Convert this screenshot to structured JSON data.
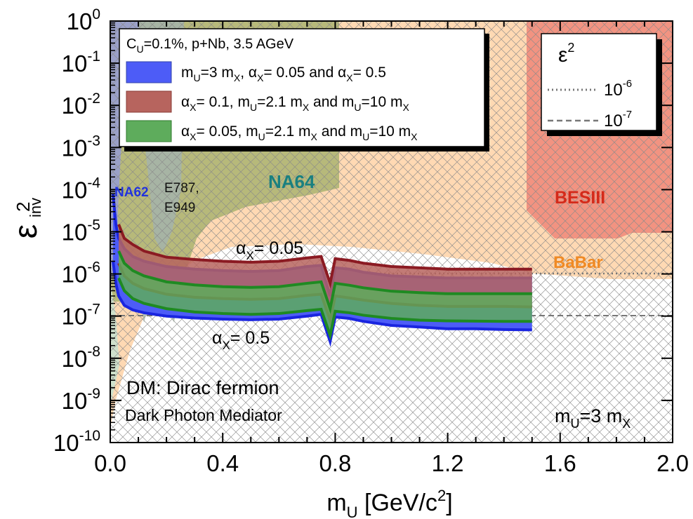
{
  "chart_data": {
    "type": "area",
    "x_axis": {
      "label_main": "m",
      "label_sub": "U",
      "label_rest": " [GeV/c",
      "label_sup": "2",
      "label_end": "]",
      "range": [
        0.0,
        2.0
      ],
      "ticks": [
        "0.0",
        "0.4",
        "0.8",
        "1.2",
        "1.6",
        "2.0"
      ],
      "tick_values": [
        0.0,
        0.4,
        0.8,
        1.2,
        1.6,
        2.0
      ]
    },
    "y_axis": {
      "label_main": "ε",
      "label_sup": "2",
      "label_sub": "inv",
      "scale": "log",
      "range_exponents": [
        -10,
        0
      ],
      "tick_base": "10",
      "tick_exponents": [
        "0",
        "-1",
        "-2",
        "-3",
        "-4",
        "-5",
        "-6",
        "-7",
        "-8",
        "-9",
        "-10"
      ]
    },
    "legend": {
      "title_main": "C",
      "title_sub": "U",
      "title_rest": "=0.1%, p+Nb, 3.5 AGeV",
      "entries": [
        {
          "color": "#4d5cf7",
          "text": "m_U=3 m_X, α_X= 0.05 and  α_X= 0.5"
        },
        {
          "color": "#b7645e",
          "text": "α_X= 0.1, m_U=2.1 m_X and m_U=10 m_X"
        },
        {
          "color": "#5eac5c",
          "text": "α_X= 0.05, m_U=2.1 m_X and m_U=10 m_X"
        }
      ]
    },
    "eps_legend": {
      "title_main": "ε",
      "title_sup": "2",
      "entries": [
        {
          "style": "dotted",
          "base": "10",
          "exp": "-6"
        },
        {
          "style": "dashed",
          "base": "10",
          "exp": "-7"
        }
      ]
    },
    "reference_lines": [
      {
        "y": 1e-06,
        "style": "dotted"
      },
      {
        "y": 1e-07,
        "style": "dashed"
      }
    ],
    "series": [
      {
        "name": "m_U=3 m_X, α_X= 0.05 and α_X= 0.5",
        "color": "#4d5cf7",
        "x": [
          0.01,
          0.02,
          0.03,
          0.05,
          0.08,
          0.12,
          0.2,
          0.3,
          0.4,
          0.5,
          0.6,
          0.7,
          0.75,
          0.782,
          0.8,
          0.85,
          0.9,
          1.0,
          1.1,
          1.2,
          1.3,
          1.4,
          1.5
        ],
        "upper": [
          8e-05,
          1.5e-05,
          7e-06,
          4e-06,
          2.6e-06,
          2e-06,
          1.5e-06,
          1.3e-06,
          1.2e-06,
          1.15e-06,
          1.2e-06,
          1.5e-06,
          1.6e-06,
          3e-07,
          1.4e-06,
          1.3e-06,
          1.1e-06,
          9e-07,
          8.5e-07,
          8e-07,
          8e-07,
          8e-07,
          8e-07
        ],
        "lower": [
          2e-06,
          6e-07,
          3e-07,
          1.8e-07,
          1.4e-07,
          1.2e-07,
          1e-07,
          9e-08,
          8.5e-08,
          8.2e-08,
          8.5e-08,
          1e-07,
          1.1e-07,
          2.5e-08,
          9.5e-08,
          8.8e-08,
          7.5e-08,
          6e-08,
          5.5e-08,
          5e-08,
          5e-08,
          4.8e-08,
          4.7e-08
        ]
      },
      {
        "name": "α_X= 0.1, m_U=2.1 m_X and m_U=10 m_X",
        "color": "#b7645e",
        "x": [
          0.03,
          0.05,
          0.08,
          0.12,
          0.2,
          0.3,
          0.4,
          0.5,
          0.6,
          0.7,
          0.75,
          0.782,
          0.8,
          0.85,
          0.9,
          1.0,
          1.1,
          1.2,
          1.3,
          1.4,
          1.5
        ],
        "upper": [
          1.5e-05,
          7e-06,
          5e-06,
          3.5e-06,
          2.5e-06,
          2.2e-06,
          2e-06,
          1.9e-06,
          2e-06,
          2.4e-06,
          2.6e-06,
          6e-07,
          2.3e-06,
          2.1e-06,
          1.8e-06,
          1.5e-06,
          1.4e-06,
          1.3e-06,
          1.3e-06,
          1.3e-06,
          1.3e-06
        ],
        "lower": [
          1.8e-06,
          9e-07,
          6e-07,
          4.5e-07,
          3.3e-07,
          2.8e-07,
          2.6e-07,
          2.5e-07,
          2.6e-07,
          3.1e-07,
          3.3e-07,
          8e-08,
          3e-07,
          2.7e-07,
          2.4e-07,
          2e-07,
          1.8e-07,
          1.7e-07,
          1.7e-07,
          1.7e-07,
          1.65e-07
        ]
      },
      {
        "name": "α_X= 0.05, m_U=2.1 m_X and m_U=10 m_X",
        "color": "#5eac5c",
        "x": [
          0.03,
          0.05,
          0.08,
          0.12,
          0.2,
          0.3,
          0.4,
          0.5,
          0.6,
          0.7,
          0.75,
          0.782,
          0.8,
          0.85,
          0.9,
          1.0,
          1.1,
          1.2,
          1.3,
          1.4,
          1.5
        ],
        "upper": [
          3.5e-06,
          1.8e-06,
          1.2e-06,
          9e-07,
          6.5e-07,
          5.5e-07,
          5e-07,
          4.8e-07,
          5e-07,
          6e-07,
          6.5e-07,
          1.5e-07,
          6e-07,
          5.4e-07,
          4.7e-07,
          3.9e-07,
          3.6e-07,
          3.4e-07,
          3.4e-07,
          3.4e-07,
          3.4e-07
        ],
        "lower": [
          8e-07,
          4e-07,
          2.6e-07,
          2e-07,
          1.5e-07,
          1.25e-07,
          1.15e-07,
          1.1e-07,
          1.15e-07,
          1.35e-07,
          1.45e-07,
          3.5e-08,
          1.3e-07,
          1.2e-07,
          1.05e-07,
          8.8e-08,
          8e-08,
          7.7e-08,
          7.6e-08,
          7.5e-08,
          7.5e-08
        ]
      }
    ],
    "excluded_regions": [
      {
        "label": "BaBar",
        "color": "#ffd9b3",
        "label_color": "#f08a24"
      },
      {
        "label": "BESIII",
        "color": "#f29381",
        "label_color": "#d42a1a"
      },
      {
        "label": "NA64",
        "color": "#b7b97a",
        "label_color": "#1a8080"
      },
      {
        "label": "NA62",
        "color": "#9aa0c8",
        "label_color": "#2233dd"
      },
      {
        "label_lines": [
          "E787,",
          "E949"
        ],
        "color": "#a7b4a4",
        "label_color": "#111111"
      }
    ],
    "annotations": {
      "alpha_upper": {
        "main": "α",
        "sub": "X",
        "rest": "= 0.05"
      },
      "alpha_lower": {
        "main": "α",
        "sub": "X",
        "rest": "= 0.5"
      },
      "dm_line1": "DM: Dirac fermion",
      "dm_line2": "Dark Photon Mediator",
      "ratio": {
        "m": "m",
        "sub1": "U",
        "mid": "=3 m",
        "sub2": "X"
      }
    }
  }
}
